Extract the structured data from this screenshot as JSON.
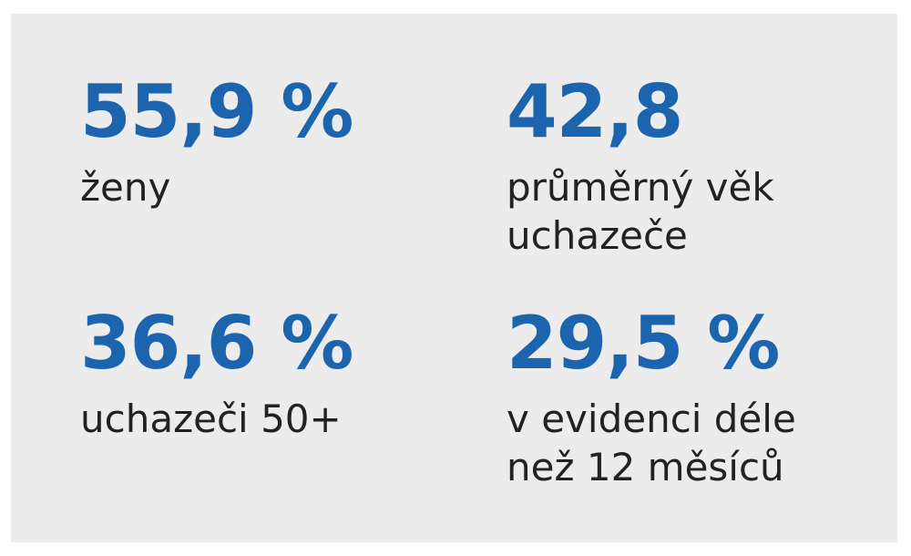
{
  "stats": [
    {
      "value": "55,9 %",
      "label": [
        "ženy"
      ]
    },
    {
      "value": "42,8",
      "label": [
        "průměrný věk",
        "uchazeče"
      ]
    },
    {
      "value": "36,6 %",
      "label": [
        "uchazeči 50+"
      ]
    },
    {
      "value": "29,5 %",
      "label": [
        "v evidenci déle",
        "než 12 měsíců"
      ]
    }
  ]
}
